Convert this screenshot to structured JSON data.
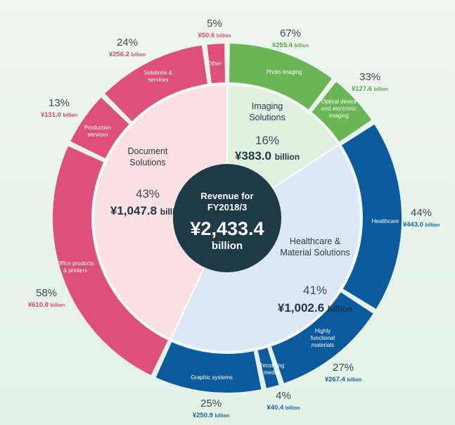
{
  "chart_data": {
    "type": "pie",
    "title": "Revenue for FY2018/3",
    "total": {
      "label_line1": "Revenue for",
      "label_line2": "FY2018/3",
      "value": "¥2,433.4",
      "unit": "billion"
    },
    "colors": {
      "imaging_inner": "#e2f1df",
      "imaging_outer": "#6ab556",
      "imaging_text": "#5aa646",
      "healthcare_inner": "#dde8f7",
      "healthcare_outer": "#0a5a9e",
      "healthcare_text": "#1a64a6",
      "document_inner": "#fbe1e1",
      "document_outer": "#df4f7d",
      "document_text": "#d94a72",
      "center": "#1d3a46"
    },
    "categories": [
      {
        "key": "imaging",
        "name_line1": "Imaging",
        "name_line2": "Solutions",
        "percent": "16%",
        "value": "¥383.0",
        "unit": "billion",
        "share": 383.0,
        "segments": [
          {
            "key": "photo",
            "label_lines": [
              "Photo imaging"
            ],
            "percent": "67%",
            "value": "¥255.4",
            "unit": "billion",
            "share": 255.4
          },
          {
            "key": "optical",
            "label_lines": [
              "Optical device",
              "and electronic",
              "imaging"
            ],
            "percent": "33%",
            "value": "¥127.6",
            "unit": "billion",
            "share": 127.6
          }
        ]
      },
      {
        "key": "healthcare",
        "name_line1": "Healthcare &",
        "name_line2": "Material Solutions",
        "percent": "41%",
        "value": "¥1,002.6",
        "unit": "billion",
        "share": 1002.6,
        "segments": [
          {
            "key": "health",
            "label_lines": [
              "Healthcare"
            ],
            "percent": "44%",
            "value": "¥443.0",
            "unit": "billion",
            "share": 443.0
          },
          {
            "key": "highly",
            "label_lines": [
              "Highly",
              "functional",
              "materials"
            ],
            "percent": "27%",
            "value": "¥267.4",
            "unit": "billion",
            "share": 267.4
          },
          {
            "key": "recording",
            "label_lines": [
              "Recording",
              "media"
            ],
            "percent": "4%",
            "value": "¥40.4",
            "unit": "billion",
            "share": 40.4
          },
          {
            "key": "graphic",
            "label_lines": [
              "Graphic systems"
            ],
            "percent": "25%",
            "value": "¥250.9",
            "unit": "billion",
            "share": 250.9
          }
        ]
      },
      {
        "key": "document",
        "name_line1": "Document",
        "name_line2": "Solutions",
        "percent": "43%",
        "value": "¥1,047.8",
        "unit": "billion",
        "share": 1047.8,
        "segments": [
          {
            "key": "office",
            "label_lines": [
              "Office products",
              "& printers"
            ],
            "percent": "58%",
            "value": "¥610.0",
            "unit": "billion",
            "share": 610.0
          },
          {
            "key": "production",
            "label_lines": [
              "Production",
              "services"
            ],
            "percent": "13%",
            "value": "¥131.0",
            "unit": "billion",
            "share": 131.0
          },
          {
            "key": "solutions",
            "label_lines": [
              "Solutions &",
              "services"
            ],
            "percent": "24%",
            "value": "¥256.2",
            "unit": "billion",
            "share": 256.2
          },
          {
            "key": "other",
            "label_lines": [
              "Other"
            ],
            "percent": "5%",
            "value": "¥50.6",
            "unit": "billion",
            "share": 50.6
          }
        ]
      }
    ]
  }
}
